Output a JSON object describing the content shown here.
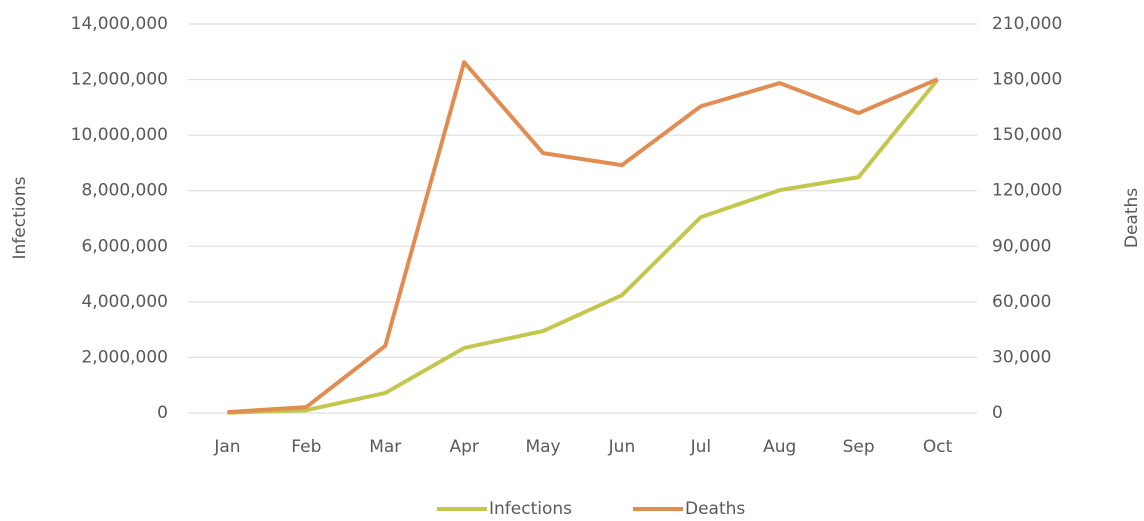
{
  "chart_data": {
    "type": "line",
    "categories": [
      "Jan",
      "Feb",
      "Mar",
      "Apr",
      "May",
      "Jun",
      "Jul",
      "Aug",
      "Sep",
      "Oct"
    ],
    "series": [
      {
        "name": "Infections",
        "color": "#c3c74e",
        "values": [
          10000,
          100000,
          720000,
          2340000,
          2950000,
          4240000,
          7050000,
          8020000,
          8490000,
          12000000
        ]
      },
      {
        "name": "Deaths",
        "color": "#e08c52",
        "axis": "y2",
        "values": [
          500,
          3200,
          36200,
          189400,
          140300,
          133800,
          165600,
          178100,
          161900,
          180200
        ]
      }
    ],
    "ylabel": "Infections",
    "y2label": "Deaths",
    "ylim": [
      0,
      14000000
    ],
    "yticks": [
      0,
      {
        "value": 2000000,
        "label": "2,000,000"
      },
      {
        "value": 4000000,
        "label": "4,000,000"
      },
      {
        "value": 6000000,
        "label": "6,000,000"
      },
      {
        "value": 8000000,
        "label": "8,000,000"
      },
      {
        "value": 10000000,
        "label": "10,000,000"
      },
      {
        "value": 12000000,
        "label": "12,000,000"
      },
      {
        "value": 14000000,
        "label": "14,000,000"
      }
    ],
    "y2lim": [
      0,
      210000
    ],
    "y2ticks": [
      0,
      {
        "value": 30000,
        "label": "30,000"
      },
      {
        "value": 60000,
        "label": "60,000"
      },
      {
        "value": 90000,
        "label": "90,000"
      },
      {
        "value": 120000,
        "label": "120,000"
      },
      {
        "value": 150000,
        "label": "150,000"
      },
      {
        "value": 180000,
        "label": "180,000"
      },
      {
        "value": 210000,
        "label": "210,000"
      }
    ],
    "grid": true,
    "legend": "bottom"
  }
}
